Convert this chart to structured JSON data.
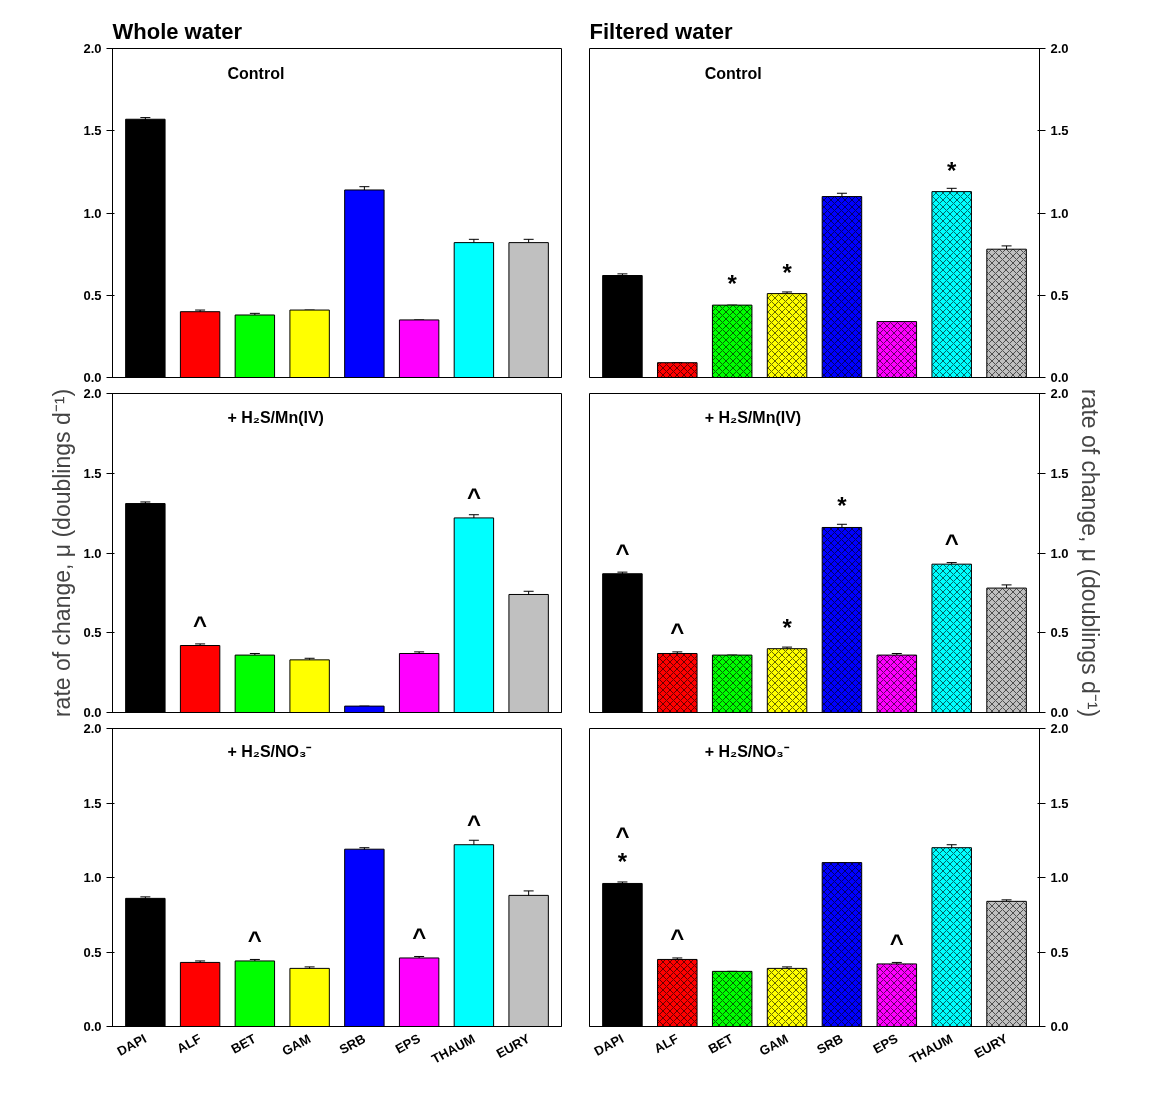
{
  "chart_data": [
    {
      "type": "bar",
      "title": "Whole water",
      "categories": [
        "DAPI",
        "ALF",
        "BET",
        "GAM",
        "SRB",
        "EPS",
        "THAUM",
        "EURY"
      ],
      "colors": [
        "#000000",
        "#ff0000",
        "#00ff00",
        "#ffff00",
        "#0000ff",
        "#ff00ff",
        "#00ffff",
        "#c0c0c0"
      ],
      "values": [
        1.57,
        0.4,
        0.38,
        0.41,
        1.14,
        0.35,
        0.82,
        0.82
      ],
      "errors": [
        0.01,
        0.01,
        0.01,
        0.0,
        0.02,
        0.0,
        0.02,
        0.02
      ],
      "ylim": [
        0,
        2
      ],
      "yticks": [
        {
          "value": 0,
          "label": "0.0"
        },
        {
          "value": 0.5,
          "label": "0.5"
        },
        {
          "value": 1,
          "label": "1.0"
        },
        {
          "value": 1.5,
          "label": "1.5"
        },
        {
          "value": 2,
          "label": "2.0"
        }
      ],
      "tick_labels": "y",
      "grid": false,
      "annotations": [
        "Control"
      ]
    },
    {
      "type": "bar",
      "title": "Filtered water",
      "categories": [
        "DAPI",
        "ALF",
        "BET",
        "GAM",
        "SRB",
        "EPS",
        "THAUM",
        "EURY"
      ],
      "colors": [
        "#000000",
        "#ff0000",
        "#00ff00",
        "#ffff00",
        "#0000ff",
        "#ff00ff",
        "#00ffff",
        "#c0c0c0"
      ],
      "values": [
        0.62,
        0.09,
        0.44,
        0.51,
        1.1,
        0.34,
        1.13,
        0.78
      ],
      "errors": [
        0.01,
        0.0,
        0.0,
        0.01,
        0.02,
        0.0,
        0.02,
        0.02
      ],
      "ylim": [
        0,
        2
      ],
      "yticks": [
        {
          "value": 0,
          "label": "0.0"
        },
        {
          "value": 0.5,
          "label": "0.5"
        },
        {
          "value": 1,
          "label": "1.0"
        },
        {
          "value": 1.5,
          "label": "1.5"
        },
        {
          "value": 2,
          "label": "2.0"
        }
      ],
      "tick_labels": "y",
      "grid": false,
      "annotations": [
        "Control",
        {
          "text": "*",
          "x": "BET",
          "y": 0.44
        },
        {
          "text": "*",
          "x": "GAM",
          "y": 0.51
        },
        {
          "text": "*",
          "x": "THAUM",
          "y": 1.13
        }
      ]
    },
    {
      "type": "bar",
      "categories": [
        "DAPI",
        "ALF",
        "BET",
        "GAM",
        "SRB",
        "EPS",
        "THAUM",
        "EURY"
      ],
      "colors": [
        "#000000",
        "#ff0000",
        "#00ff00",
        "#ffff00",
        "#0000ff",
        "#ff00ff",
        "#00ffff",
        "#c0c0c0"
      ],
      "values": [
        1.31,
        0.42,
        0.36,
        0.33,
        0.04,
        0.37,
        1.22,
        0.74
      ],
      "errors": [
        0.01,
        0.01,
        0.01,
        0.01,
        0.0,
        0.01,
        0.02,
        0.02
      ],
      "ylim": [
        0,
        2
      ],
      "yticks": [
        {
          "value": 0,
          "label": "0.0"
        },
        {
          "value": 0.5,
          "label": "0.5"
        },
        {
          "value": 1,
          "label": "1.0"
        },
        {
          "value": 1.5,
          "label": "1.5"
        },
        {
          "value": 2,
          "label": "2.0"
        }
      ],
      "tick_labels": "y",
      "grid": false,
      "ylabel": "rate of change, μ (doublings d⁻¹)",
      "annotations": [
        "+ H₂S/Mn(IV)",
        {
          "text": "^",
          "x": "ALF",
          "y": 0.42
        },
        {
          "text": "^",
          "x": "THAUM",
          "y": 1.22
        }
      ]
    },
    {
      "type": "bar",
      "categories": [
        "DAPI",
        "ALF",
        "BET",
        "GAM",
        "SRB",
        "EPS",
        "THAUM",
        "EURY"
      ],
      "colors": [
        "#000000",
        "#ff0000",
        "#00ff00",
        "#ffff00",
        "#0000ff",
        "#ff00ff",
        "#00ffff",
        "#c0c0c0"
      ],
      "values": [
        0.87,
        0.37,
        0.36,
        0.4,
        1.16,
        0.36,
        0.93,
        0.78
      ],
      "errors": [
        0.01,
        0.01,
        0.0,
        0.01,
        0.02,
        0.01,
        0.01,
        0.02
      ],
      "ylim": [
        0,
        2
      ],
      "yticks": [
        {
          "value": 0,
          "label": "0.0"
        },
        {
          "value": 0.5,
          "label": "0.5"
        },
        {
          "value": 1,
          "label": "1.0"
        },
        {
          "value": 1.5,
          "label": "1.5"
        },
        {
          "value": 2,
          "label": "2.0"
        }
      ],
      "tick_labels": "y",
      "grid": false,
      "ylabel": "rate of change, μ (doublings d⁻¹)",
      "annotations": [
        "+ H₂S/Mn(IV)",
        {
          "text": "^",
          "x": "DAPI",
          "y": 0.87
        },
        {
          "text": "^",
          "x": "ALF",
          "y": 0.37
        },
        {
          "text": "*",
          "x": "GAM",
          "y": 0.4
        },
        {
          "text": "*",
          "x": "SRB",
          "y": 1.16
        },
        {
          "text": "^",
          "x": "THAUM",
          "y": 0.93
        }
      ]
    },
    {
      "type": "bar",
      "categories": [
        "DAPI",
        "ALF",
        "BET",
        "GAM",
        "SRB",
        "EPS",
        "THAUM",
        "EURY"
      ],
      "colors": [
        "#000000",
        "#ff0000",
        "#00ff00",
        "#ffff00",
        "#0000ff",
        "#ff00ff",
        "#00ffff",
        "#c0c0c0"
      ],
      "values": [
        0.86,
        0.43,
        0.44,
        0.39,
        1.19,
        0.46,
        1.22,
        0.88
      ],
      "errors": [
        0.01,
        0.01,
        0.01,
        0.01,
        0.01,
        0.01,
        0.03,
        0.03
      ],
      "ylim": [
        0,
        2
      ],
      "yticks": [
        {
          "value": 0,
          "label": "0.0"
        },
        {
          "value": 0.5,
          "label": "0.5"
        },
        {
          "value": 1,
          "label": "1.0"
        },
        {
          "value": 1.5,
          "label": "1.5"
        },
        {
          "value": 2,
          "label": "2.0"
        }
      ],
      "grid": false,
      "annotations": [
        "+ H₂S/NO₃⁻",
        {
          "text": "^",
          "x": "BET",
          "y": 0.44
        },
        {
          "text": "^",
          "x": "EPS",
          "y": 0.46
        },
        {
          "text": "^",
          "x": "THAUM",
          "y": 1.22
        }
      ]
    },
    {
      "type": "bar",
      "categories": [
        "DAPI",
        "ALF",
        "BET",
        "GAM",
        "SRB",
        "EPS",
        "THAUM",
        "EURY"
      ],
      "colors": [
        "#000000",
        "#ff0000",
        "#00ff00",
        "#ffff00",
        "#0000ff",
        "#ff00ff",
        "#00ffff",
        "#c0c0c0"
      ],
      "values": [
        0.96,
        0.45,
        0.37,
        0.39,
        1.1,
        0.42,
        1.2,
        0.84
      ],
      "errors": [
        0.01,
        0.01,
        0.0,
        0.01,
        0.0,
        0.01,
        0.02,
        0.01
      ],
      "ylim": [
        0,
        2
      ],
      "yticks": [
        {
          "value": 0,
          "label": "0.0"
        },
        {
          "value": 0.5,
          "label": "0.5"
        },
        {
          "value": 1,
          "label": "1.0"
        },
        {
          "value": 1.5,
          "label": "1.5"
        },
        {
          "value": 2,
          "label": "2.0"
        }
      ],
      "grid": false,
      "annotations": [
        "+ H₂S/NO₃⁻",
        {
          "text": "*",
          "x": "DAPI",
          "y": 0.96
        },
        {
          "text": "^",
          "x": "DAPI",
          "y": 0.96
        },
        {
          "text": "^",
          "x": "ALF",
          "y": 0.45
        },
        {
          "text": "^",
          "x": "EPS",
          "y": 0.42
        }
      ]
    }
  ]
}
